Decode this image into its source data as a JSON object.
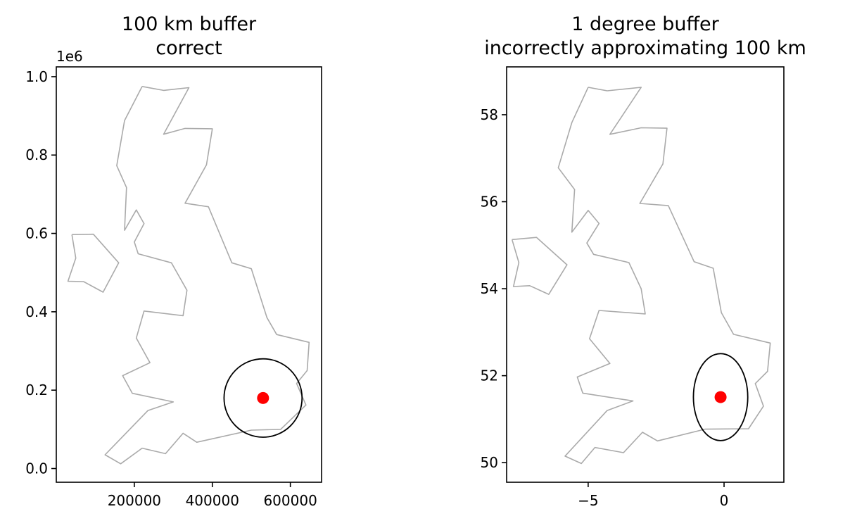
{
  "chart_data": [
    {
      "type": "map",
      "title_lines": [
        "100 km buffer",
        "correct"
      ],
      "offset_text": "1e6",
      "xlabel": "",
      "ylabel": "",
      "xlim": [
        0,
        680000
      ],
      "ylim": [
        -35000,
        1025000
      ],
      "x_ticks": [
        200000,
        400000,
        600000
      ],
      "x_tick_labels": [
        "200000",
        "400000",
        "600000"
      ],
      "y_ticks": [
        0,
        200000,
        400000,
        600000,
        800000,
        1000000
      ],
      "y_tick_labels": [
        "0.0",
        "0.2",
        "0.4",
        "0.6",
        "0.8",
        "1.0"
      ],
      "outline_color": "#aaaaaa",
      "outline": [
        [
          [
            220000,
            975000
          ],
          [
            275000,
            965000
          ],
          [
            340000,
            972000
          ],
          [
            275000,
            853000
          ],
          [
            330000,
            868000
          ],
          [
            400000,
            867000
          ],
          [
            385000,
            775000
          ],
          [
            330000,
            677000
          ],
          [
            390000,
            668000
          ],
          [
            450000,
            525000
          ],
          [
            500000,
            510000
          ],
          [
            540000,
            385000
          ],
          [
            565000,
            342000
          ],
          [
            648000,
            322000
          ],
          [
            643000,
            250000
          ],
          [
            616000,
            217000
          ],
          [
            640000,
            162000
          ],
          [
            575000,
            100000
          ],
          [
            500000,
            98000
          ],
          [
            360000,
            67000
          ],
          [
            325000,
            90000
          ],
          [
            280000,
            38000
          ],
          [
            220000,
            52000
          ],
          [
            165000,
            12000
          ],
          [
            125000,
            35000
          ],
          [
            235000,
            148000
          ],
          [
            300000,
            170000
          ],
          [
            195000,
            192000
          ],
          [
            170000,
            237000
          ],
          [
            240000,
            270000
          ],
          [
            205000,
            333000
          ],
          [
            225000,
            402000
          ],
          [
            325000,
            390000
          ],
          [
            335000,
            455000
          ],
          [
            295000,
            525000
          ],
          [
            210000,
            548000
          ],
          [
            200000,
            578000
          ],
          [
            225000,
            625000
          ],
          [
            205000,
            660000
          ],
          [
            175000,
            608000
          ],
          [
            180000,
            717000
          ],
          [
            155000,
            773000
          ],
          [
            175000,
            888000
          ],
          [
            220000,
            975000
          ]
        ],
        [
          [
            40000,
            597000
          ],
          [
            95000,
            598000
          ],
          [
            160000,
            525000
          ],
          [
            120000,
            450000
          ],
          [
            70000,
            477000
          ],
          [
            30000,
            478000
          ],
          [
            50000,
            537000
          ],
          [
            40000,
            597000
          ]
        ]
      ],
      "point": {
        "x": 530000,
        "y": 180000,
        "color": "#ff0000"
      },
      "buffer": {
        "cx": 530000,
        "cy": 180000,
        "rx": 100000,
        "ry": 100000,
        "color": "#000000"
      }
    },
    {
      "type": "map",
      "title_lines": [
        "1 degree buffer",
        "incorrectly approximating 100 km"
      ],
      "offset_text": "",
      "xlabel": "",
      "ylabel": "",
      "xlim": [
        -8.0,
        2.2
      ],
      "ylim": [
        49.55,
        59.1
      ],
      "x_ticks": [
        -5,
        0
      ],
      "x_tick_labels": [
        "−5",
        "0"
      ],
      "y_ticks": [
        50,
        52,
        54,
        56,
        58
      ],
      "y_tick_labels": [
        "50",
        "52",
        "54",
        "56",
        "58"
      ],
      "outline_color": "#aaaaaa",
      "outline": [
        [
          [
            -5.0,
            58.63
          ],
          [
            -4.3,
            58.55
          ],
          [
            -3.05,
            58.63
          ],
          [
            -4.2,
            57.55
          ],
          [
            -3.05,
            57.7
          ],
          [
            -2.1,
            57.69
          ],
          [
            -2.25,
            56.87
          ],
          [
            -3.1,
            55.96
          ],
          [
            -2.05,
            55.91
          ],
          [
            -1.1,
            54.62
          ],
          [
            -0.4,
            54.47
          ],
          [
            -0.1,
            53.45
          ],
          [
            0.35,
            52.95
          ],
          [
            1.7,
            52.75
          ],
          [
            1.6,
            52.1
          ],
          [
            1.15,
            51.82
          ],
          [
            1.45,
            51.3
          ],
          [
            0.9,
            50.78
          ],
          [
            -0.7,
            50.77
          ],
          [
            -2.45,
            50.5
          ],
          [
            -3.0,
            50.7
          ],
          [
            -3.7,
            50.23
          ],
          [
            -4.75,
            50.35
          ],
          [
            -5.25,
            49.98
          ],
          [
            -5.85,
            50.15
          ],
          [
            -4.3,
            51.2
          ],
          [
            -3.35,
            51.42
          ],
          [
            -5.2,
            51.6
          ],
          [
            -5.4,
            51.97
          ],
          [
            -4.2,
            52.28
          ],
          [
            -4.95,
            52.85
          ],
          [
            -4.6,
            53.5
          ],
          [
            -2.9,
            53.42
          ],
          [
            -3.05,
            54.0
          ],
          [
            -3.5,
            54.6
          ],
          [
            -4.8,
            54.79
          ],
          [
            -5.05,
            55.05
          ],
          [
            -4.6,
            55.5
          ],
          [
            -5.0,
            55.8
          ],
          [
            -5.6,
            55.3
          ],
          [
            -5.5,
            56.28
          ],
          [
            -6.1,
            56.78
          ],
          [
            -5.6,
            57.82
          ],
          [
            -5.0,
            58.63
          ]
        ],
        [
          [
            -7.8,
            55.13
          ],
          [
            -6.9,
            55.18
          ],
          [
            -5.78,
            54.55
          ],
          [
            -6.45,
            53.87
          ],
          [
            -7.15,
            54.07
          ],
          [
            -7.75,
            54.05
          ],
          [
            -7.55,
            54.6
          ],
          [
            -7.8,
            55.13
          ]
        ]
      ],
      "point": {
        "x": -0.1278,
        "y": 51.5074,
        "color": "#ff0000"
      },
      "buffer": {
        "cx": -0.1278,
        "cy": 51.5074,
        "rx": 1.0,
        "ry": 1.0,
        "color": "#000000"
      }
    }
  ]
}
